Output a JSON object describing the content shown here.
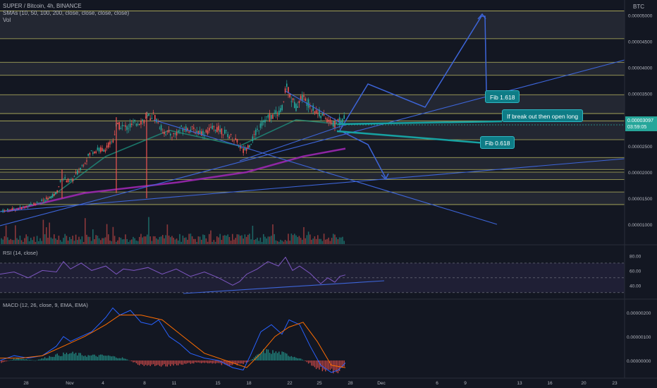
{
  "header": {
    "symbol_line": "SUPER / Bitcoin, 4h, BINANCE",
    "sma_line": "SMAs (10, 50, 100, 200, close, close, close, close)",
    "vol_line": "Vol",
    "currency": "BTC"
  },
  "price_tag": {
    "price": "0.00003097",
    "countdown": "03:59:05"
  },
  "annotations": {
    "fib_1618": "Fib 1.618",
    "breakout": "If break out then open long",
    "fib_0618": "Fib 0.618"
  },
  "colors": {
    "background": "#131722",
    "up": "#26a69a",
    "down": "#ef5350",
    "drawing": "#3d65d9",
    "annotation": "#0e7c86",
    "sma_purple": "#9c27b0",
    "rsi": "#7e57c2",
    "macd": "#2962ff",
    "signal": "#ff6d00"
  },
  "chart_data": [
    {
      "type": "candlestick",
      "title": "SUPER / Bitcoin, 4h, BINANCE",
      "price_axis_labels": [
        "0.00005000",
        "0.00004500",
        "0.00004000",
        "0.00003500",
        "0.00002500",
        "0.00002000",
        "0.00001500",
        "0.00001000"
      ],
      "ylim": [
        8.4e-06,
        5.29e-05
      ],
      "x_tick_labels": [
        "28",
        "Nov",
        "4",
        "8",
        "11",
        "15",
        "18",
        "22",
        "25",
        "28",
        "Dec",
        "6",
        "9",
        "13",
        "16",
        "20",
        "23"
      ],
      "last_price": 3.097e-05,
      "price_path": [
        [
          0,
          1.25e-05
        ],
        [
          25,
          1.3e-05
        ],
        [
          50,
          1.4e-05
        ],
        [
          70,
          1.5e-05
        ],
        [
          80,
          1.6e-05
        ],
        [
          88,
          1.9e-05
        ],
        [
          100,
          1.8e-05
        ],
        [
          110,
          2e-05
        ],
        [
          130,
          2.4e-05
        ],
        [
          150,
          2.45e-05
        ],
        [
          160,
          2.6e-05
        ],
        [
          165,
          2.9e-05
        ],
        [
          180,
          2.85e-05
        ],
        [
          195,
          2.95e-05
        ],
        [
          205,
          3e-05
        ],
        [
          218,
          3.1e-05
        ],
        [
          230,
          2.8e-05
        ],
        [
          245,
          2.7e-05
        ],
        [
          260,
          2.85e-05
        ],
        [
          275,
          2.8e-05
        ],
        [
          290,
          2.75e-05
        ],
        [
          305,
          2.85e-05
        ],
        [
          320,
          2.75e-05
        ],
        [
          335,
          2.6e-05
        ],
        [
          345,
          2.4e-05
        ],
        [
          355,
          2.55e-05
        ],
        [
          365,
          2.8e-05
        ],
        [
          375,
          3e-05
        ],
        [
          390,
          3.1e-05
        ],
        [
          400,
          3.2e-05
        ],
        [
          407,
          3.68e-05
        ],
        [
          413,
          3.4e-05
        ],
        [
          420,
          3.25e-05
        ],
        [
          428,
          3.45e-05
        ],
        [
          435,
          3.35e-05
        ],
        [
          445,
          3.2e-05
        ],
        [
          455,
          3.1e-05
        ],
        [
          465,
          3e-05
        ],
        [
          475,
          2.9e-05
        ],
        [
          480,
          3e-05
        ],
        [
          485,
          2.95e-05
        ],
        [
          489,
          3.1e-05
        ]
      ],
      "horizontal_zones": [
        [
          5.08e-05,
          4.55e-05
        ],
        [
          4.1e-05,
          3.85e-05
        ],
        [
          3.48e-05,
          3.12e-05
        ],
        [
          2.98e-05,
          2.62e-05
        ],
        [
          2.28e-05,
          2.05e-05
        ],
        [
          2e-05,
          1.86e-05
        ],
        [
          1.62e-05,
          1.38e-05
        ]
      ],
      "sma_long": [
        [
          10,
          1.25e-05
        ],
        [
          120,
          1.6e-05
        ],
        [
          250,
          1.8e-05
        ],
        [
          350,
          2e-05
        ],
        [
          430,
          2.3e-05
        ],
        [
          490,
          2.45e-05
        ]
      ],
      "sma_mid": [
        [
          60,
          1.4e-05
        ],
        [
          150,
          2.3e-05
        ],
        [
          240,
          2.8e-05
        ],
        [
          340,
          2.5e-05
        ],
        [
          420,
          3e-05
        ],
        [
          480,
          2.92e-05
        ]
      ]
    },
    {
      "type": "bar",
      "title": "Vol",
      "note": "volume histogram, no values printed"
    },
    {
      "type": "line",
      "title": "RSI (14, close)",
      "tick_labels": [
        "80.00",
        "60.00",
        "40.00"
      ],
      "ylim": [
        25,
        90
      ],
      "band": [
        30,
        70
      ],
      "x": [
        0,
        20,
        40,
        60,
        80,
        90,
        100,
        115,
        130,
        150,
        165,
        175,
        190,
        210,
        230,
        250,
        270,
        290,
        310,
        330,
        340,
        350,
        365,
        380,
        395,
        405,
        415,
        425,
        440,
        455,
        465,
        475,
        482,
        490
      ],
      "values": [
        55,
        58,
        50,
        60,
        58,
        72,
        62,
        70,
        60,
        66,
        55,
        62,
        60,
        64,
        55,
        62,
        52,
        58,
        50,
        40,
        45,
        55,
        62,
        72,
        66,
        78,
        60,
        66,
        56,
        42,
        50,
        44,
        52,
        54
      ]
    },
    {
      "type": "bar",
      "title": "MACD (12, 26, close, 9, EMA, EMA)",
      "tick_labels": [
        "0.00000200",
        "0.00000100",
        "0.00000000"
      ],
      "ylim": [
        -6.5e-07,
        2.45e-06
      ],
      "series": [
        {
          "name": "MACD",
          "x": [
            0,
            20,
            40,
            60,
            80,
            90,
            100,
            115,
            130,
            150,
            160,
            170,
            185,
            200,
            215,
            225,
            240,
            255,
            270,
            290,
            310,
            330,
            345,
            355,
            370,
            385,
            400,
            410,
            425,
            440,
            455,
            470,
            480,
            490
          ],
          "values": [
            0.0,
            2e-07,
            1e-07,
            2e-07,
            6e-07,
            1e-06,
            8e-07,
            1e-06,
            1.2e-06,
            1.8e-06,
            2.2e-06,
            1.9e-06,
            2.1e-06,
            1.6e-06,
            1.5e-06,
            1.7e-06,
            1e-06,
            7e-07,
            3e-07,
            1e-07,
            0.0,
            -3e-07,
            -4e-07,
            2e-07,
            1.2e-06,
            1.5e-06,
            1.1e-06,
            1.7e-06,
            1.5e-06,
            6e-07,
            -2e-07,
            -5e-07,
            -4e-07,
            -1e-07
          ]
        },
        {
          "name": "Signal",
          "x": [
            0,
            30,
            60,
            90,
            120,
            150,
            170,
            200,
            230,
            260,
            290,
            320,
            350,
            370,
            390,
            410,
            430,
            450,
            470,
            490
          ],
          "values": [
            1e-07,
            1e-07,
            2e-07,
            6e-07,
            1e-06,
            1.5e-06,
            1.9e-06,
            1.9e-06,
            1.7e-06,
            1e-06,
            3e-07,
            0.0,
            -3e-07,
            3e-07,
            1e-06,
            1.4e-06,
            1.6e-06,
            8e-07,
            -2e-07,
            -3e-07
          ]
        }
      ],
      "histogram": {
        "x": [
          0,
          25,
          50,
          75,
          100,
          125,
          150,
          175,
          200,
          225,
          250,
          275,
          300,
          325,
          350,
          375,
          400,
          425,
          450,
          475,
          490
        ],
        "values": [
          -1e-07,
          1e-07,
          0.0,
          2e-07,
          3e-07,
          2e-07,
          2e-07,
          1e-07,
          -2e-07,
          -2e-07,
          -2e-07,
          -1e-07,
          -1e-07,
          -2e-07,
          -1e-07,
          4e-07,
          3e-07,
          1e-07,
          -3e-07,
          -5e-07,
          -2e-07
        ]
      }
    }
  ]
}
